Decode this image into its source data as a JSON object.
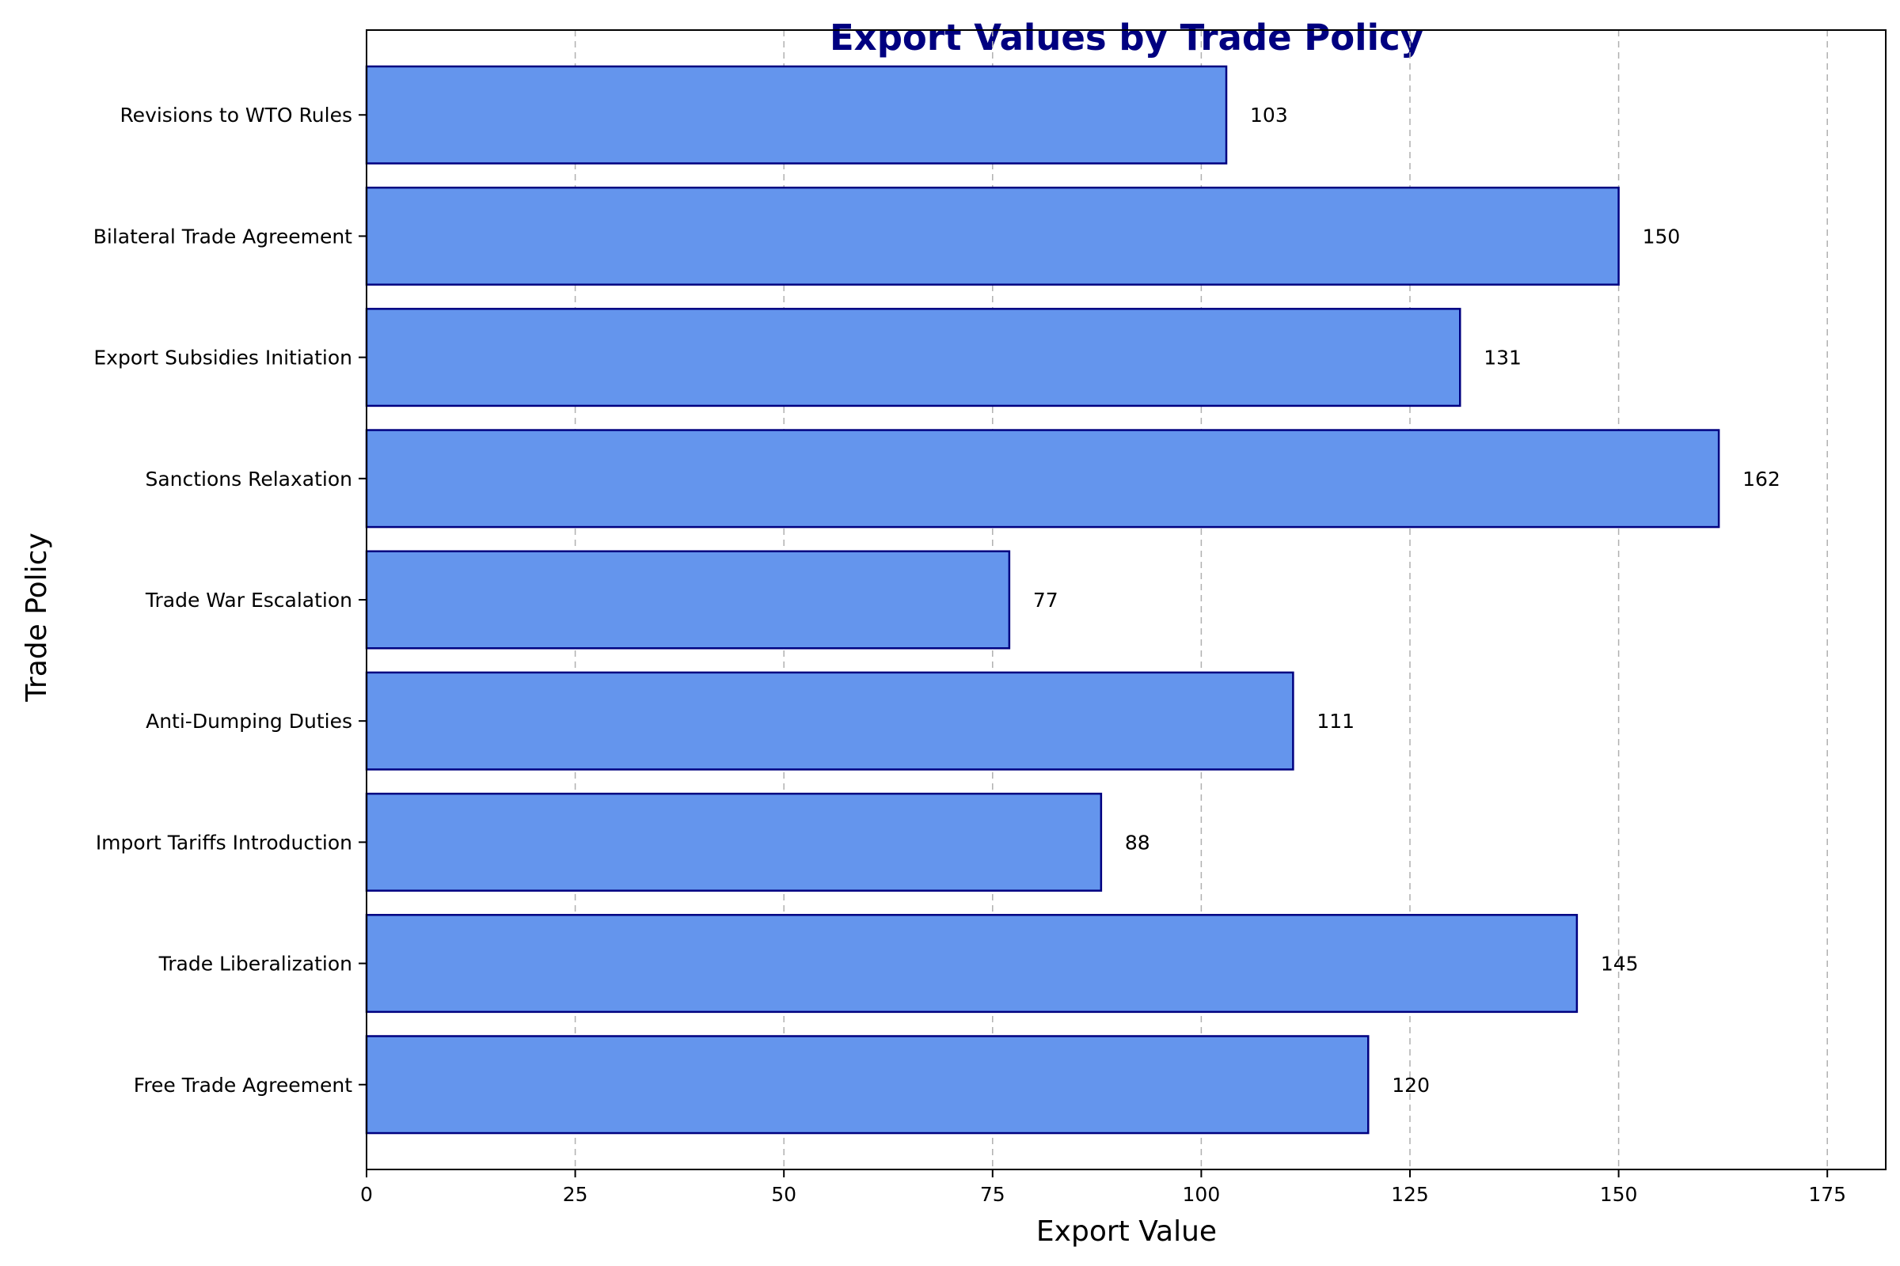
{
  "chart_data": {
    "type": "bar",
    "orientation": "horizontal",
    "title": "Export Values by Trade Policy",
    "xlabel": "Export Value",
    "ylabel": "Trade Policy",
    "categories": [
      "Free Trade Agreement",
      "Trade Liberalization",
      "Import Tariffs Introduction",
      "Anti-Dumping Duties",
      "Trade War Escalation",
      "Sanctions Relaxation",
      "Export Subsidies Initiation",
      "Bilateral Trade Agreement",
      "Revisions to WTO Rules"
    ],
    "values": [
      120,
      145,
      88,
      111,
      77,
      162,
      131,
      150,
      103
    ],
    "xlim": [
      0,
      182
    ],
    "xticks": [
      0,
      25,
      50,
      75,
      100,
      125,
      150,
      175
    ],
    "grid": "x-dashed",
    "colors": {
      "bar_fill": "#6495ED",
      "bar_edge": "#000080",
      "title": "#000080",
      "grid": "#b0b0b0"
    }
  }
}
